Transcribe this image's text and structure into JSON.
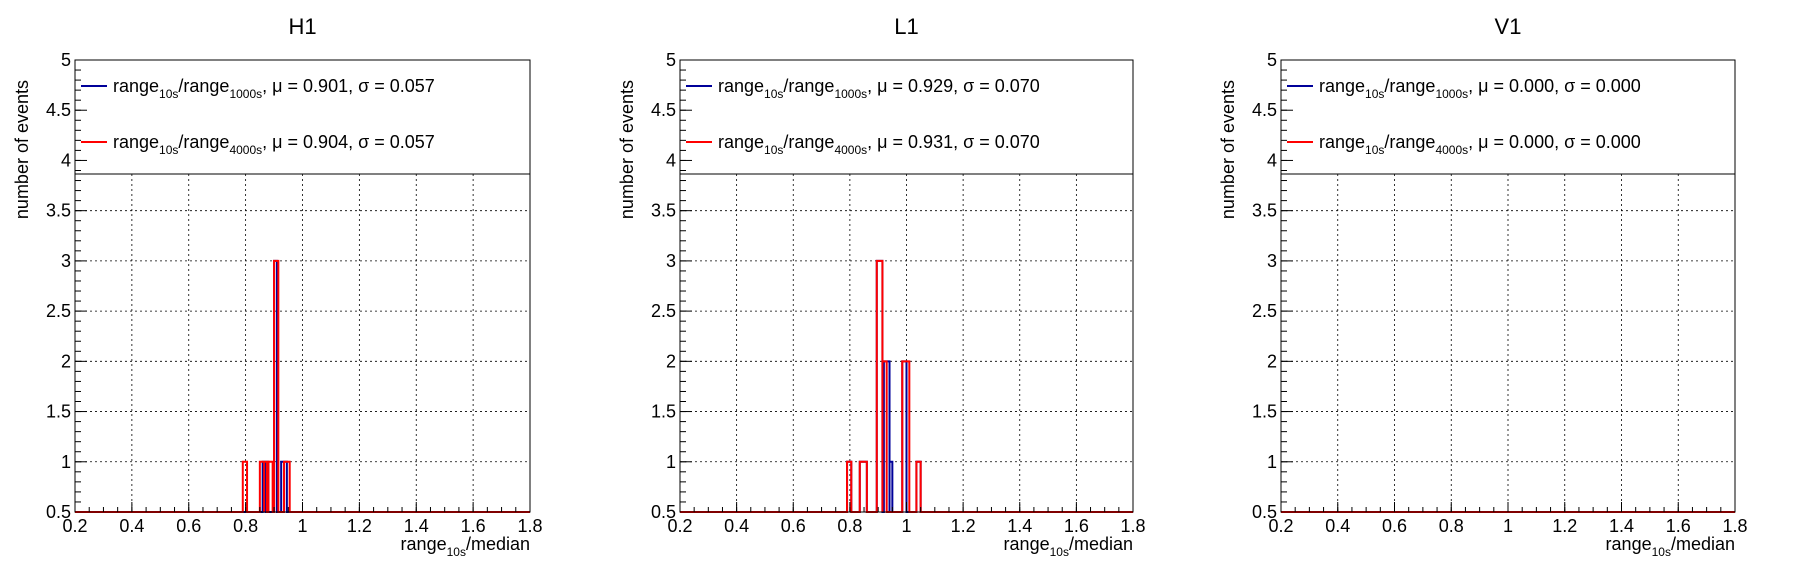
{
  "chart_data": [
    {
      "type": "step-histogram",
      "title": "H1",
      "xlabel": {
        "main": "range",
        "sub": "10s",
        "suffix": "/median"
      },
      "ylabel": "number of events",
      "xlim": [
        0.2,
        1.8
      ],
      "ylim": [
        0.5,
        5
      ],
      "log_y": false,
      "grid": true,
      "legend_placement": "top",
      "xticks": [
        "0.2",
        "0.4",
        "0.6",
        "0.8",
        "1",
        "1.2",
        "1.4",
        "1.6",
        "1.8"
      ],
      "yticks": [
        "0.5",
        "1",
        "1.5",
        "2",
        "2.5",
        "3",
        "3.5",
        "4",
        "4.5",
        "5"
      ],
      "bin_edges": [
        0.2,
        1.8
      ],
      "series": [
        {
          "legend": {
            "a": "range",
            "a_sub": "10s",
            "b": "/range",
            "b_sub": "1000s",
            "stats": ", μ = 0.901, σ = 0.057"
          },
          "color": "#000099",
          "bins": [
            [
              0.86,
              0.87,
              1
            ],
            [
              0.875,
              0.88,
              1
            ],
            [
              0.9,
              0.91,
              3
            ],
            [
              0.925,
              0.945,
              1
            ]
          ]
        },
        {
          "legend": {
            "a": "range",
            "a_sub": "10s",
            "b": "/range",
            "b_sub": "4000s",
            "stats": ", μ = 0.904, σ = 0.057"
          },
          "color": "#ff0000",
          "bins": [
            [
              0.79,
              0.805,
              1
            ],
            [
              0.85,
              0.865,
              1
            ],
            [
              0.865,
              0.875,
              1
            ],
            [
              0.88,
              0.895,
              1
            ],
            [
              0.9,
              0.915,
              3
            ],
            [
              0.935,
              0.955,
              1
            ]
          ]
        }
      ]
    },
    {
      "type": "step-histogram",
      "title": "L1",
      "xlabel": {
        "main": "range",
        "sub": "10s",
        "suffix": "/median"
      },
      "ylabel": "number of events",
      "xlim": [
        0.2,
        1.8
      ],
      "ylim": [
        0.5,
        5
      ],
      "log_y": false,
      "grid": true,
      "legend_placement": "top",
      "xticks": [
        "0.2",
        "0.4",
        "0.6",
        "0.8",
        "1",
        "1.2",
        "1.4",
        "1.6",
        "1.8"
      ],
      "yticks": [
        "0.5",
        "1",
        "1.5",
        "2",
        "2.5",
        "3",
        "3.5",
        "4",
        "4.5",
        "5"
      ],
      "series": [
        {
          "legend": {
            "a": "range",
            "a_sub": "10s",
            "b": "/range",
            "b_sub": "1000s",
            "stats": ", μ = 0.929, σ = 0.070"
          },
          "color": "#000099",
          "bins": [
            [
              0.79,
              0.805,
              1
            ],
            [
              0.835,
              0.86,
              1
            ],
            [
              0.895,
              0.915,
              3
            ],
            [
              0.92,
              0.94,
              2
            ],
            [
              0.94,
              0.95,
              1
            ],
            [
              0.985,
              1.0,
              2
            ],
            [
              1.035,
              1.05,
              1
            ]
          ]
        },
        {
          "legend": {
            "a": "range",
            "a_sub": "10s",
            "b": "/range",
            "b_sub": "4000s",
            "stats": ", μ = 0.931, σ = 0.070"
          },
          "color": "#ff0000",
          "bins": [
            [
              0.79,
              0.805,
              1
            ],
            [
              0.835,
              0.86,
              1
            ],
            [
              0.895,
              0.915,
              3
            ],
            [
              0.915,
              0.93,
              2
            ],
            [
              0.985,
              1.01,
              2
            ],
            [
              1.035,
              1.05,
              1
            ]
          ]
        }
      ]
    },
    {
      "type": "step-histogram",
      "title": "V1",
      "xlabel": {
        "main": "range",
        "sub": "10s",
        "suffix": "/median"
      },
      "ylabel": "number of events",
      "xlim": [
        0.2,
        1.8
      ],
      "ylim": [
        0.5,
        5
      ],
      "log_y": false,
      "grid": true,
      "legend_placement": "top",
      "xticks": [
        "0.2",
        "0.4",
        "0.6",
        "0.8",
        "1",
        "1.2",
        "1.4",
        "1.6",
        "1.8"
      ],
      "yticks": [
        "0.5",
        "1",
        "1.5",
        "2",
        "2.5",
        "3",
        "3.5",
        "4",
        "4.5",
        "5"
      ],
      "series": [
        {
          "legend": {
            "a": "range",
            "a_sub": "10s",
            "b": "/range",
            "b_sub": "1000s",
            "stats": ", μ = 0.000, σ = 0.000"
          },
          "color": "#000099",
          "bins": []
        },
        {
          "legend": {
            "a": "range",
            "a_sub": "10s",
            "b": "/range",
            "b_sub": "4000s",
            "stats": ", μ = 0.000, σ = 0.000"
          },
          "color": "#ff0000",
          "bins": []
        }
      ]
    }
  ]
}
